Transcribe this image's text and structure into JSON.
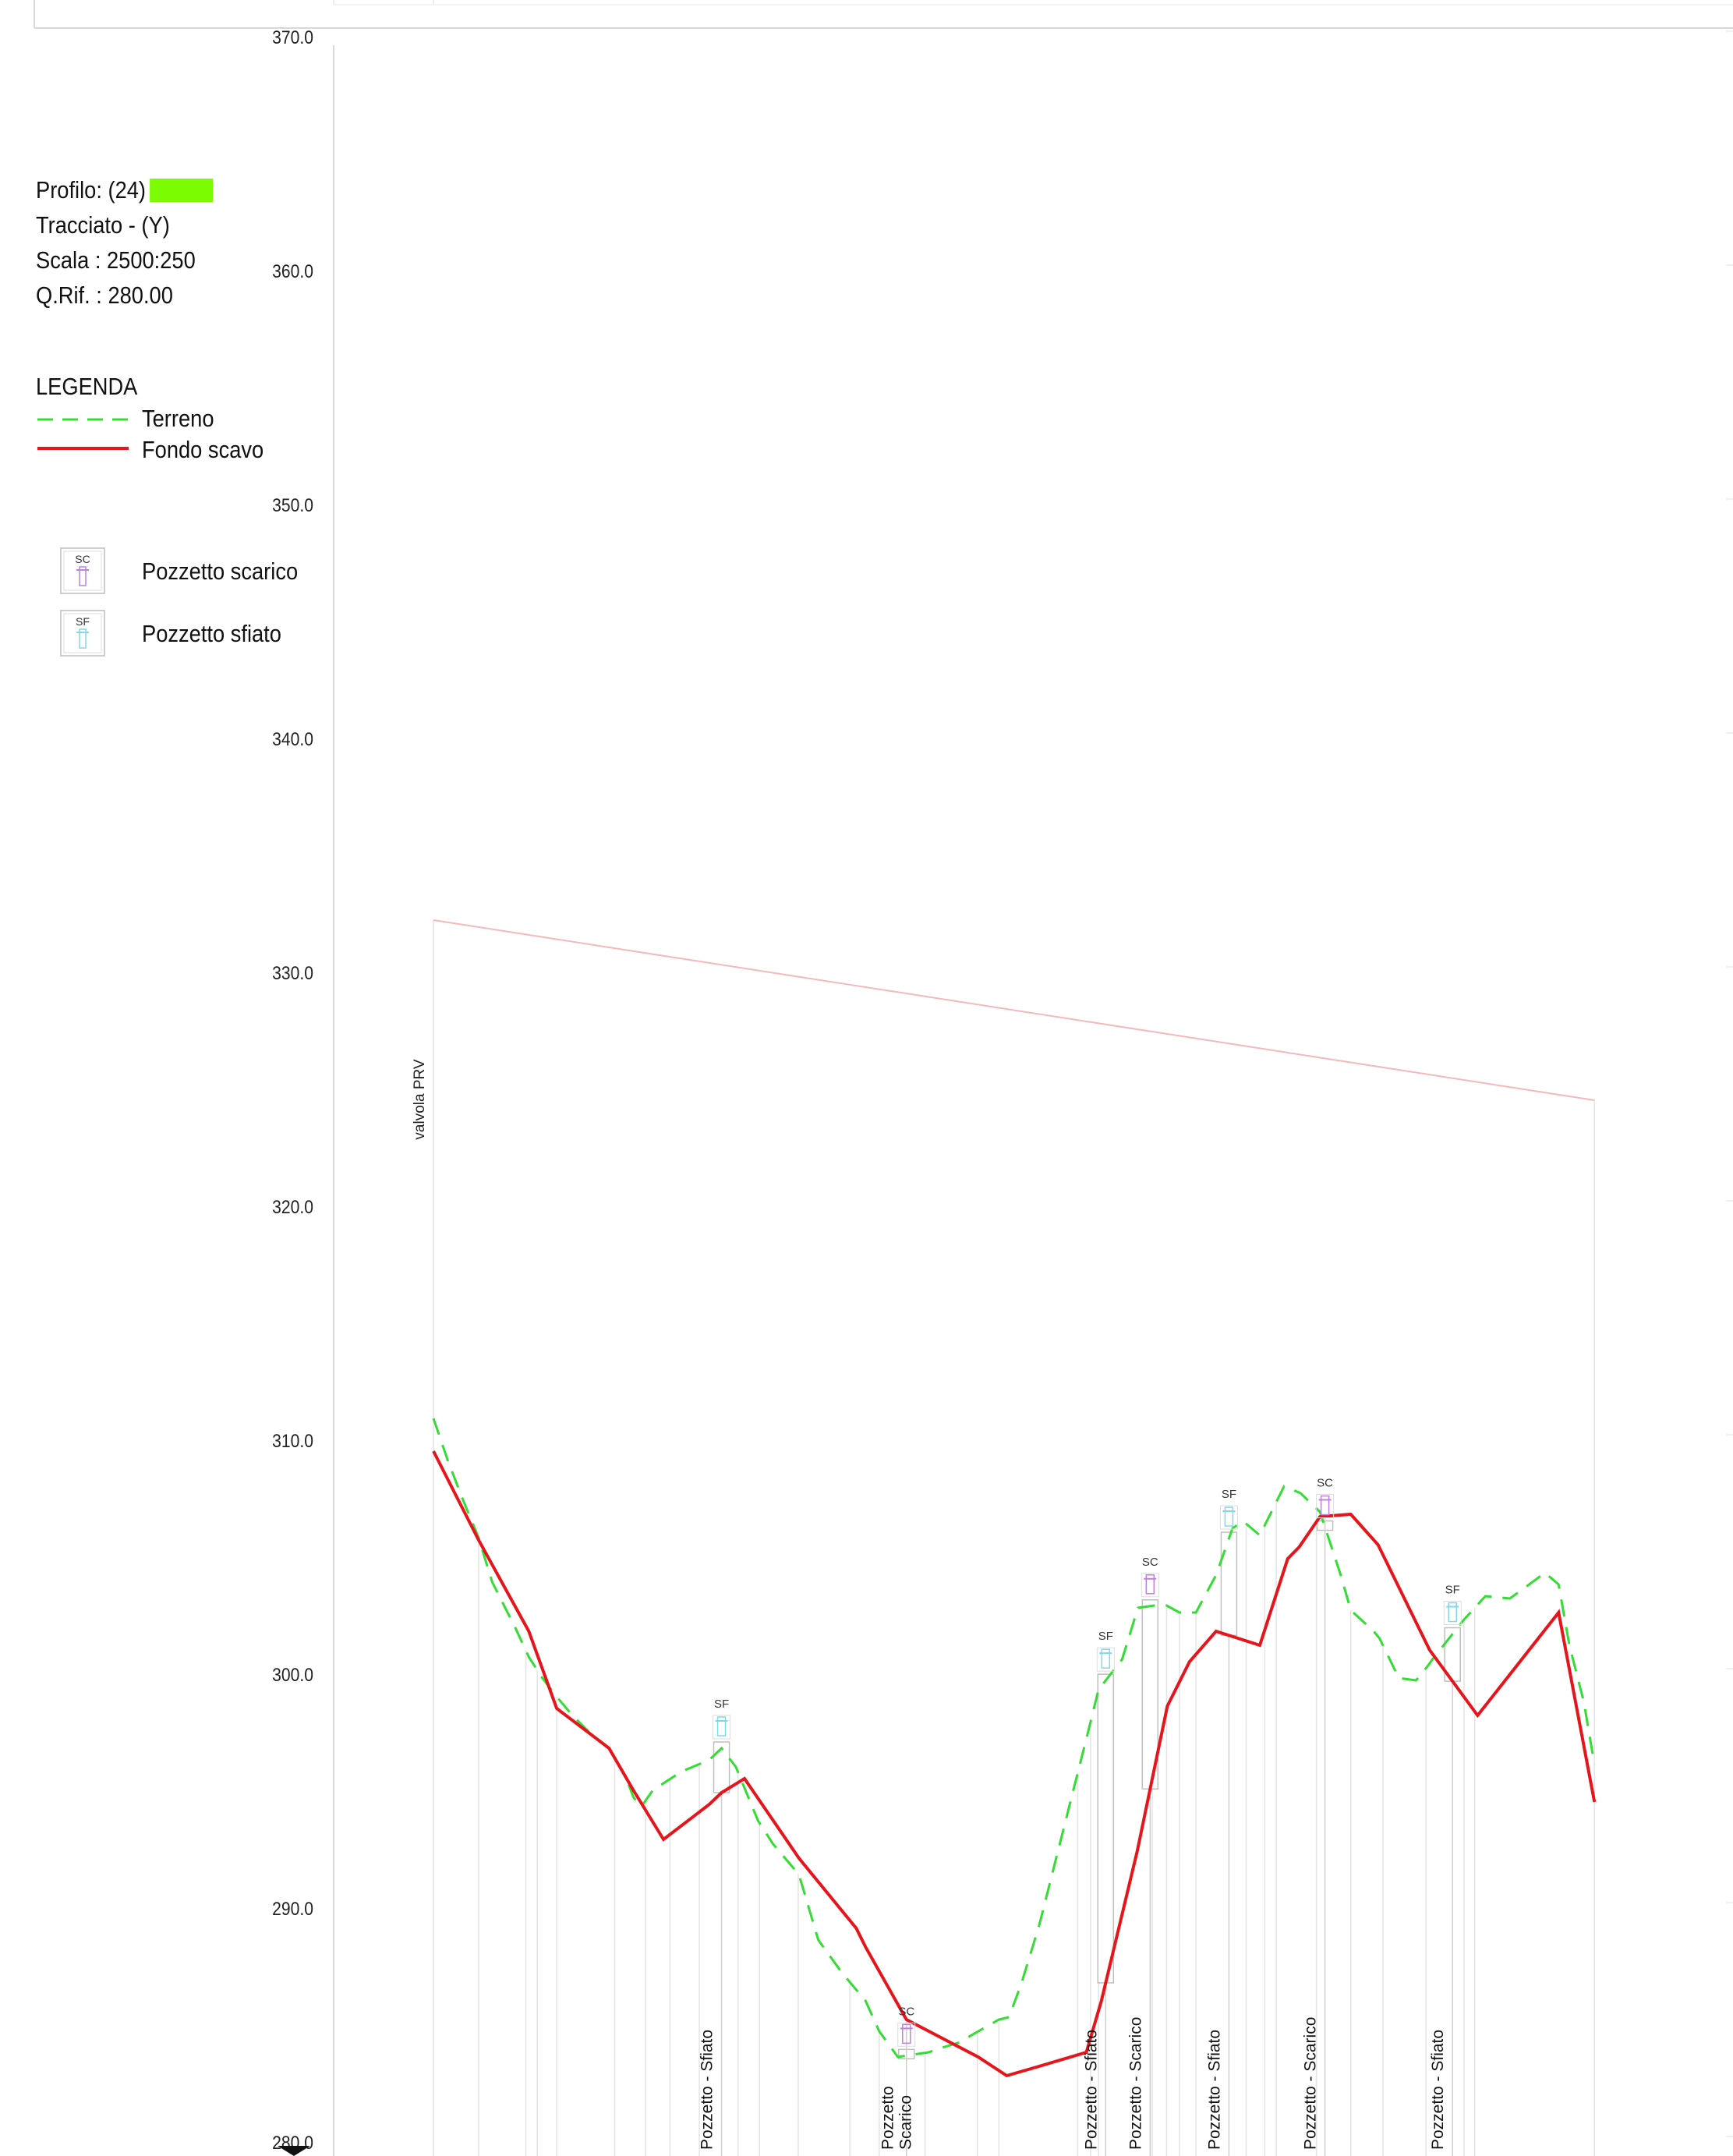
{
  "info": {
    "profilo": "Profilo: (24)",
    "tracciato": "Tracciato - (Y)",
    "scala": "Scala : 2500:250",
    "qrif": "Q.Rif. : 280.00"
  },
  "legend": {
    "title": "LEGENDA",
    "terreno": "Terreno",
    "fondo_scavo": "Fondo scavo",
    "pozzetto_scarico": "Pozzetto scarico",
    "pozzetto_sfiato": "Pozzetto sfiato",
    "sc_symbol": "SC",
    "sf_symbol": "SF"
  },
  "colors": {
    "profile_swatch": "#7cfc00",
    "terreno": "#33dd33",
    "fondo_scavo": "#e8141c",
    "piezometric": "#f5b8bc",
    "sc_symbol": "#c080e0",
    "sf_symbol": "#80d8ec",
    "grid": "#e4e4e4",
    "axis_text": "#222222"
  },
  "chart_data": {
    "type": "line",
    "ylim": [
      280,
      370
    ],
    "y_ticks": [
      "370.0",
      "360.0",
      "350.0",
      "340.0",
      "330.0",
      "320.0",
      "310.0",
      "300.0",
      "290.0",
      "280.0"
    ],
    "xlim": [
      0,
      1620
    ],
    "series": [
      {
        "name": "Terreno",
        "line_style": "dashed",
        "x": [
          0,
          20,
          40,
          63,
          82,
          115,
          133,
          152,
          172,
          194,
          220,
          245,
          268,
          279,
          290,
          306,
          346,
          385,
          402,
          422,
          434,
          453,
          474,
          510,
          537,
          570,
          603,
          622,
          648,
          691,
          710,
          732,
          789,
          803,
          820,
          845,
          897,
          911,
          928,
          961,
          983,
          1006,
          1023,
          1041,
          1064,
          1092,
          1115,
          1130,
          1153,
          1187,
          1210,
          1237,
          1266,
          1280,
          1312,
          1320,
          1347,
          1371,
          1387,
          1394,
          1438,
          1468,
          1502,
          1529,
          1551,
          1570,
          1585,
          1605,
          1620
        ],
        "y": [
          310.7,
          308.9,
          307.3,
          305.6,
          303.7,
          301.7,
          300.5,
          299.6,
          298.8,
          298.0,
          297.2,
          296.6,
          295.4,
          294.5,
          294.1,
          294.8,
          295.6,
          296.1,
          296.6,
          295.8,
          294.9,
          293.5,
          292.5,
          291.2,
          288.4,
          287.0,
          285.8,
          284.5,
          283.4,
          283.6,
          283.8,
          284.0,
          285.0,
          285.1,
          286.5,
          289.0,
          295.3,
          297.0,
          299.1,
          300.4,
          302.6,
          302.7,
          302.7,
          302.4,
          302.4,
          304.0,
          306.0,
          306.3,
          305.7,
          307.8,
          307.5,
          306.7,
          304.0,
          302.5,
          301.6,
          301.3,
          299.6,
          299.5,
          300.1,
          300.4,
          302.1,
          303.1,
          303.0,
          303.6,
          304.1,
          303.6,
          301.0,
          298.6,
          295.9
        ]
      },
      {
        "name": "Fondo scavo",
        "line_style": "solid",
        "x": [
          0,
          63,
          133,
          172,
          245,
          279,
          321,
          385,
          402,
          434,
          510,
          590,
          603,
          660,
          760,
          800,
          845,
          911,
          932,
          982,
          1024,
          1055,
          1092,
          1153,
          1192,
          1208,
          1237,
          1280,
          1318,
          1390,
          1457,
          1570,
          1620
        ],
        "y": [
          309.3,
          305.5,
          301.6,
          298.3,
          296.6,
          294.8,
          292.7,
          294.2,
          294.7,
          295.3,
          291.9,
          288.9,
          288.1,
          285.0,
          283.4,
          282.6,
          283.0,
          283.6,
          285.8,
          292.2,
          298.4,
          300.3,
          301.6,
          301.0,
          304.7,
          305.2,
          306.5,
          306.6,
          305.3,
          300.8,
          298.0,
          302.4,
          294.3
        ]
      },
      {
        "line_style": "solid-thin",
        "x": [
          0,
          1620
        ],
        "y": [
          332.0,
          324.3
        ]
      }
    ],
    "annotations": [
      {
        "text": "valvola PRV",
        "x": 0
      },
      {
        "text": "Pozzetto - Sfiato",
        "x": 402,
        "symbol": "SF"
      },
      {
        "text": "Pozzetto Scarico",
        "x": 660,
        "symbol": "SC"
      },
      {
        "text": "Pozzetto - Sfiato",
        "x": 938,
        "symbol": "SF"
      },
      {
        "text": "Pozzetto - Scarico",
        "x": 1000,
        "symbol": "SC"
      },
      {
        "text": "Pozzetto - Sfiato",
        "x": 1110,
        "symbol": "SF"
      },
      {
        "text": "Pozzetto - Scarico",
        "x": 1244,
        "symbol": "SC"
      },
      {
        "text": "Pozzetto - Sfiato",
        "x": 1422,
        "symbol": "SF"
      }
    ],
    "stations_x": [
      0,
      63,
      129,
      145,
      172,
      253,
      296,
      330,
      371,
      425,
      455,
      509,
      581,
      622,
      686,
      759,
      789,
      899,
      917,
      928,
      1003,
      1023,
      1041,
      1064,
      1134,
      1160,
      1176,
      1232,
      1280,
      1325,
      1385,
      1438,
      1453,
      1620
    ]
  }
}
